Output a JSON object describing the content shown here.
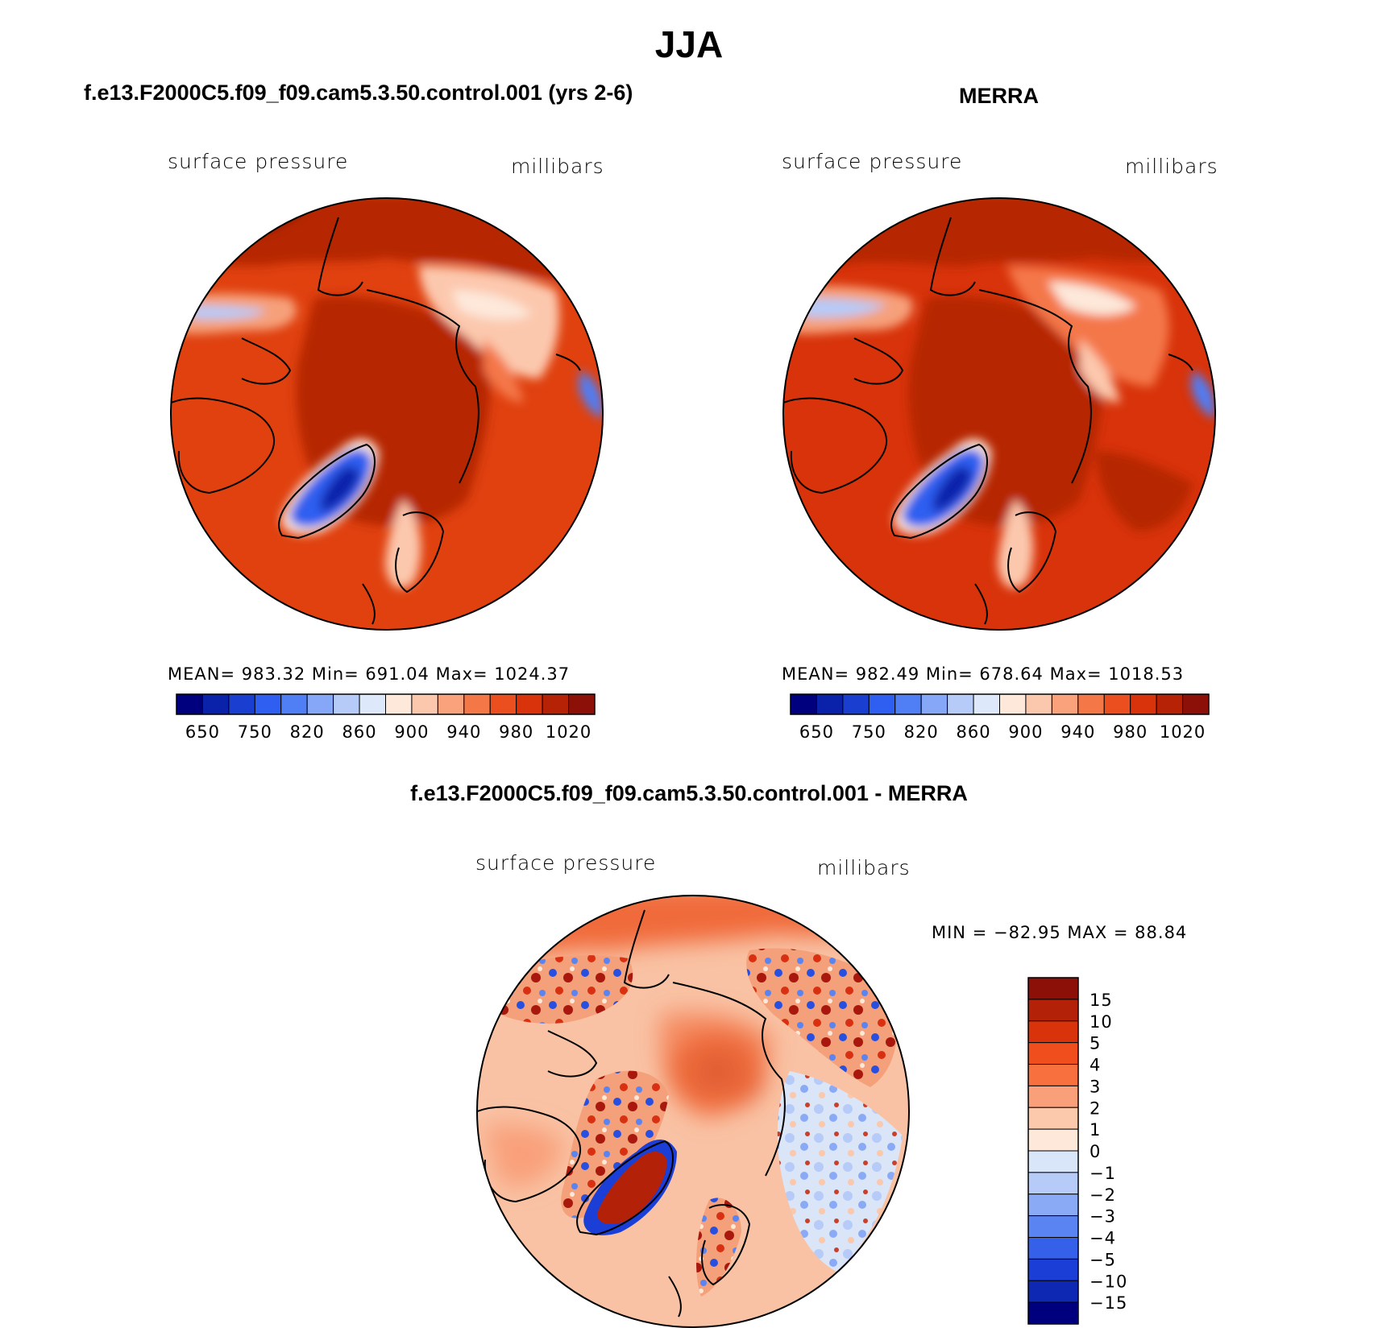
{
  "main_title": "JJA",
  "panels": [
    {
      "title": "f.e13.F2000C5.f09_f09.cam5.3.50.control.001 (yrs 2-6)",
      "variable": "surface pressure",
      "units": "millibars",
      "stats": "MEAN=  983.32    Min=  691.04    Max=  1024.37"
    },
    {
      "title": "MERRA",
      "variable": "surface pressure",
      "units": "millibars",
      "stats": "MEAN=  982.49    Min=  678.64    Max=  1018.53"
    },
    {
      "title": "f.e13.F2000C5.f09_f09.cam5.3.50.control.001 - MERRA",
      "variable": "surface pressure",
      "units": "millibars",
      "stats": "MIN  =  −82.95  MAX  =    88.84"
    }
  ],
  "abs_colorbar": {
    "colors": [
      "#00007f",
      "#0a22aa",
      "#1a3fd0",
      "#2e5ff0",
      "#4f7ef5",
      "#86a6f7",
      "#b6cbf8",
      "#dde9fb",
      "#fde8da",
      "#fcc8ad",
      "#f9a27b",
      "#f47748",
      "#ec4f1f",
      "#d8330a",
      "#b52206",
      "#8c0f08"
    ],
    "labels": [
      "650",
      "750",
      "820",
      "860",
      "900",
      "940",
      "980",
      "1020"
    ]
  },
  "diff_colorbar": {
    "colors": [
      "#8c0f08",
      "#b32208",
      "#d8330a",
      "#f04e1c",
      "#f7703e",
      "#f9a07a",
      "#fcc9ad",
      "#fde8da",
      "#d9e6fa",
      "#b6cbf8",
      "#8aaaf6",
      "#5a84f2",
      "#3560ea",
      "#1a3ed6",
      "#0f28b4",
      "#00007f"
    ],
    "labels": [
      "15",
      "10",
      "5",
      "4",
      "3",
      "2",
      "1",
      "0",
      "−1",
      "−2",
      "−3",
      "−4",
      "−5",
      "−10",
      "−15"
    ]
  }
}
